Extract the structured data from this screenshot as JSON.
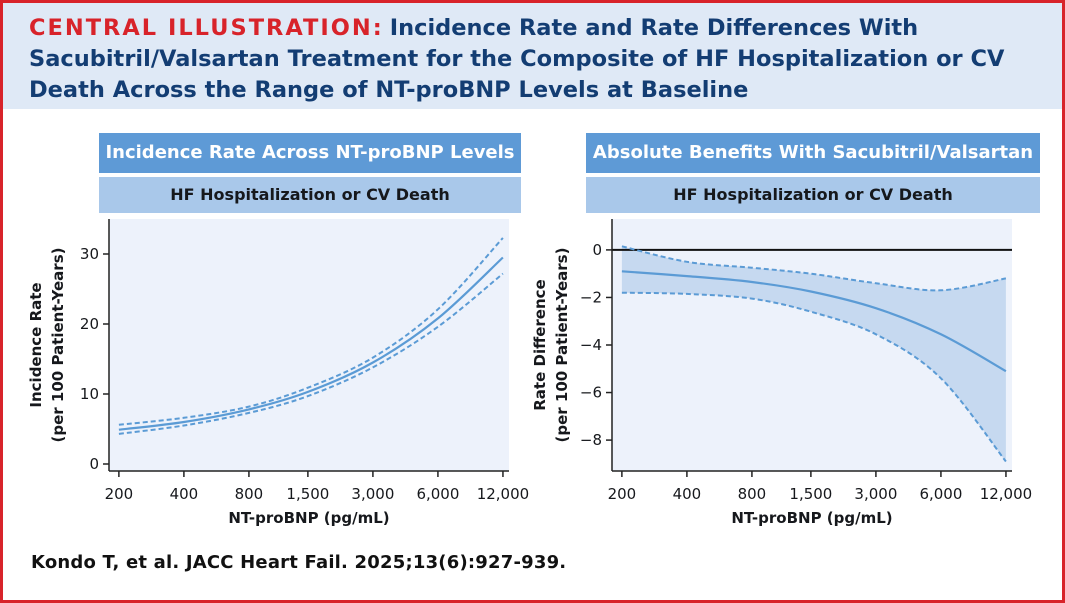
{
  "header": {
    "lead": "CENTRAL ILLUSTRATION:",
    "title": "Incidence Rate and Rate Differences With Sacubitril/Valsartan Treatment for the Composite of HF Hospitalization or CV Death Across the Range of NT-proBNP Levels at Baseline"
  },
  "colors": {
    "border": "#d8232a",
    "header_bg": "#dfe9f6",
    "title": "#133d73",
    "panel_head": "#5e9ad6",
    "panel_sub": "#a9c8ea",
    "plot_bg": "#edf2fb",
    "line": "#5b9bd5",
    "band": "#c6d9f0"
  },
  "citation": "Kondo T, et al. JACC Heart Fail. 2025;13(6):927-939.",
  "chart_data": [
    {
      "type": "line",
      "title": "Incidence Rate Across NT-proBNP Levels",
      "subtitle": "HF Hospitalization or CV Death",
      "xlabel": "NT-proBNP (pg/mL)",
      "ylabel_lines": [
        "Incidence Rate",
        "(per 100 Patient-Years)"
      ],
      "x_scale": "log",
      "x_ticks": [
        200,
        400,
        800,
        1500,
        3000,
        6000,
        12000
      ],
      "x_tick_labels": [
        "200",
        "400",
        "800",
        "1,500",
        "3,000",
        "6,000",
        "12,000"
      ],
      "xlim": [
        180,
        12800
      ],
      "ylim": [
        -1,
        35
      ],
      "y_ticks": [
        0,
        10,
        20,
        30
      ],
      "y_tick_labels": [
        "0",
        "10",
        "20",
        "30"
      ],
      "zero_line": false,
      "band_fill": false,
      "series": [
        {
          "name": "estimate",
          "x": [
            200,
            400,
            800,
            1500,
            3000,
            6000,
            12000
          ],
          "values": [
            4.9,
            6.0,
            7.8,
            10.3,
            14.5,
            20.8,
            29.5
          ]
        },
        {
          "name": "upper 95% CI",
          "x": [
            200,
            400,
            800,
            1500,
            3000,
            6000,
            12000
          ],
          "values": [
            5.6,
            6.6,
            8.2,
            10.9,
            15.2,
            22.1,
            32.3
          ]
        },
        {
          "name": "lower 95% CI",
          "x": [
            200,
            400,
            800,
            1500,
            3000,
            6000,
            12000
          ],
          "values": [
            4.3,
            5.5,
            7.3,
            9.7,
            13.8,
            19.6,
            27.2
          ]
        }
      ]
    },
    {
      "type": "line",
      "title": "Absolute Benefits With Sacubitril/Valsartan",
      "subtitle": "HF Hospitalization or CV Death",
      "xlabel": "NT-proBNP (pg/mL)",
      "ylabel_lines": [
        "Rate Difference",
        "(per 100 Patient-Years)"
      ],
      "x_scale": "log",
      "x_ticks": [
        200,
        400,
        800,
        1500,
        3000,
        6000,
        12000
      ],
      "x_tick_labels": [
        "200",
        "400",
        "800",
        "1,500",
        "3,000",
        "6,000",
        "12,000"
      ],
      "xlim": [
        180,
        12800
      ],
      "ylim": [
        -9.3,
        1.3
      ],
      "y_ticks": [
        0,
        -2,
        -4,
        -6,
        -8
      ],
      "y_tick_labels": [
        "0",
        "−2",
        "−4",
        "−6",
        "−8"
      ],
      "zero_line": true,
      "band_fill": true,
      "series": [
        {
          "name": "estimate",
          "x": [
            200,
            400,
            800,
            1500,
            3000,
            6000,
            12000
          ],
          "values": [
            -0.9,
            -1.1,
            -1.35,
            -1.75,
            -2.45,
            -3.55,
            -5.1
          ]
        },
        {
          "name": "upper 95% CI",
          "x": [
            200,
            400,
            800,
            1500,
            3000,
            6000,
            12000
          ],
          "values": [
            0.15,
            -0.5,
            -0.75,
            -1.0,
            -1.4,
            -1.7,
            -1.2
          ]
        },
        {
          "name": "lower 95% CI",
          "x": [
            200,
            400,
            800,
            1500,
            3000,
            6000,
            12000
          ],
          "values": [
            -1.8,
            -1.85,
            -2.05,
            -2.6,
            -3.55,
            -5.4,
            -8.9
          ]
        }
      ]
    }
  ]
}
